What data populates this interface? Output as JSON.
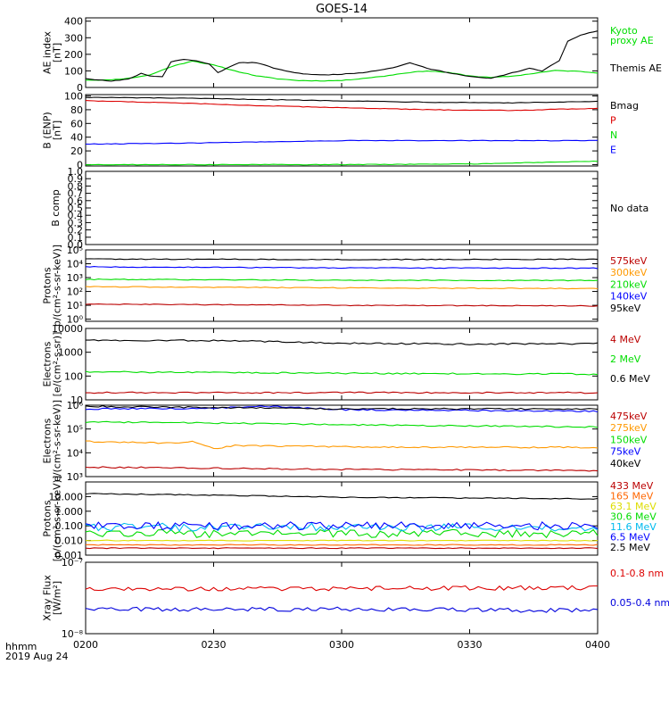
{
  "title": "GOES-14",
  "time_axis": {
    "ticks": [
      "0200",
      "0230",
      "0300",
      "0330",
      "0400"
    ],
    "tick_minutes": [
      120,
      150,
      180,
      210,
      240
    ],
    "xlim_minutes": [
      120,
      240
    ],
    "label_time": "hhmm",
    "label_date": "2019 Aug 24"
  },
  "chart_data": [
    {
      "type": "line",
      "ylabel": [
        "AE index",
        "[nT]"
      ],
      "yscale": "linear",
      "ylim": [
        0,
        420
      ],
      "yticks": [
        0,
        100,
        200,
        300,
        400
      ],
      "yticklabels": [
        "0",
        "100",
        "200",
        "300",
        "400"
      ],
      "series": [
        {
          "name": "Kyoto proxy AE",
          "color": "#00dd00",
          "x": [
            120,
            125,
            130,
            135,
            140,
            145,
            150,
            155,
            160,
            165,
            170,
            175,
            180,
            185,
            190,
            195,
            200,
            205,
            210,
            215,
            220,
            225,
            230,
            235,
            240
          ],
          "values": [
            45,
            45,
            55,
            75,
            125,
            160,
            135,
            100,
            70,
            52,
            42,
            40,
            42,
            55,
            68,
            88,
            100,
            90,
            70,
            60,
            68,
            85,
            102,
            98,
            88
          ]
        },
        {
          "name": "Themis AE",
          "color": "#000000",
          "x": [
            120,
            123,
            126,
            130,
            133,
            135,
            138,
            140,
            143,
            146,
            149,
            151,
            153,
            156,
            160,
            165,
            170,
            175,
            180,
            185,
            190,
            193,
            196,
            200,
            203,
            206,
            209,
            212,
            215,
            218,
            221,
            224,
            227,
            229,
            231,
            233,
            236,
            238,
            240
          ],
          "values": [
            55,
            45,
            38,
            50,
            85,
            70,
            65,
            155,
            170,
            160,
            140,
            90,
            115,
            150,
            150,
            110,
            85,
            75,
            80,
            90,
            110,
            125,
            150,
            115,
            100,
            85,
            70,
            60,
            55,
            75,
            95,
            115,
            100,
            130,
            160,
            280,
            315,
            330,
            340
          ]
        }
      ]
    },
    {
      "type": "line",
      "ylabel": [
        "B (ENP)",
        "[nT]"
      ],
      "yscale": "linear",
      "ylim": [
        -2,
        102
      ],
      "yticks": [
        0,
        20,
        40,
        60,
        80,
        100
      ],
      "yticklabels": [
        "0",
        "20",
        "40",
        "60",
        "80",
        "100"
      ],
      "series": [
        {
          "name": "Bmag",
          "color": "#000000",
          "x": [
            120,
            140,
            160,
            180,
            200,
            220,
            240
          ],
          "values": [
            98,
            97,
            95,
            93,
            91,
            90,
            92
          ]
        },
        {
          "name": "P",
          "color": "#dd0000",
          "x": [
            120,
            140,
            160,
            180,
            200,
            220,
            240
          ],
          "values": [
            93,
            90,
            86,
            83,
            80,
            79,
            82
          ]
        },
        {
          "name": "N",
          "color": "#00dd00",
          "x": [
            120,
            150,
            180,
            210,
            225,
            240
          ],
          "values": [
            0,
            0,
            0,
            1,
            3,
            5
          ]
        },
        {
          "name": "E",
          "color": "#0000ff",
          "x": [
            120,
            140,
            160,
            180,
            200,
            220,
            240
          ],
          "values": [
            30,
            31,
            33,
            35,
            35,
            35,
            35
          ]
        }
      ]
    },
    {
      "type": "line",
      "ylabel": [
        "B comp"
      ],
      "yscale": "linear",
      "ylim": [
        0,
        1
      ],
      "yticks": [
        0,
        0.1,
        0.2,
        0.3,
        0.4,
        0.5,
        0.6,
        0.7,
        0.8,
        0.9,
        1.0
      ],
      "yticklabels": [
        "0.0",
        "0.1",
        "0.2",
        "0.3",
        "0.4",
        "0.5",
        "0.6",
        "0.7",
        "0.8",
        "0.9",
        "1.0"
      ],
      "note": "No data",
      "series": []
    },
    {
      "type": "line",
      "ylabel": [
        "Protons",
        "p/(cm²-s-sr-keV)]"
      ],
      "yscale": "log",
      "ylim": [
        0.7,
        100000
      ],
      "yticks": [
        1,
        10,
        100,
        1000,
        10000,
        100000
      ],
      "yticklabels": [
        "10⁰",
        "10¹",
        "10²",
        "10³",
        "10⁴",
        "10⁵"
      ],
      "series": [
        {
          "name": "575keV",
          "color": "#bb0000",
          "x": [
            120,
            180,
            240
          ],
          "values": [
            12,
            10,
            9
          ]
        },
        {
          "name": "300keV",
          "color": "#ff9900",
          "x": [
            120,
            180,
            240
          ],
          "values": [
            220,
            180,
            160
          ]
        },
        {
          "name": "210keV",
          "color": "#00dd00",
          "x": [
            120,
            180,
            240
          ],
          "values": [
            750,
            650,
            620
          ]
        },
        {
          "name": "140keV",
          "color": "#0000ff",
          "x": [
            120,
            180,
            240
          ],
          "values": [
            6000,
            5000,
            4800
          ]
        },
        {
          "name": "95keV",
          "color": "#000000",
          "x": [
            120,
            180,
            240
          ],
          "values": [
            22000,
            20000,
            21000
          ]
        }
      ]
    },
    {
      "type": "line",
      "ylabel": [
        "Electrons",
        "[e/(cm²-s-sr)]"
      ],
      "yscale": "log",
      "ylim": [
        10,
        10000
      ],
      "yticks": [
        10,
        100,
        1000,
        10000
      ],
      "yticklabels": [
        "10",
        "100",
        "1000",
        "10000"
      ],
      "series": [
        {
          "name": "4 MeV",
          "color": "#bb0000",
          "x": [
            120,
            180,
            240
          ],
          "values": [
            20,
            20,
            20
          ]
        },
        {
          "name": "2 MeV",
          "color": "#00dd00",
          "x": [
            120,
            180,
            240
          ],
          "values": [
            150,
            130,
            120
          ]
        },
        {
          "name": "0.6 MeV",
          "color": "#000000",
          "x": [
            120,
            150,
            180,
            210,
            240
          ],
          "values": [
            3200,
            3100,
            2400,
            2200,
            2300
          ]
        }
      ]
    },
    {
      "type": "line",
      "ylabel": [
        "Electrons",
        "e/(cm²-s-sr-keV)]"
      ],
      "yscale": "log",
      "ylim": [
        1000,
        1000000
      ],
      "yticks": [
        1000,
        10000,
        100000,
        1000000
      ],
      "yticklabels": [
        "10³",
        "10⁴",
        "10⁵",
        "10⁶"
      ],
      "series": [
        {
          "name": "475keV",
          "color": "#bb0000",
          "x": [
            120,
            180,
            240
          ],
          "values": [
            2500,
            2000,
            1800
          ]
        },
        {
          "name": "275keV",
          "color": "#ff9900",
          "x": [
            120,
            140,
            145,
            150,
            155,
            160,
            180,
            200,
            240
          ],
          "values": [
            30000,
            25000,
            30000,
            15000,
            20000,
            20000,
            18000,
            17000,
            17000
          ]
        },
        {
          "name": "150keV",
          "color": "#00dd00",
          "x": [
            120,
            150,
            180,
            240
          ],
          "values": [
            200000,
            180000,
            150000,
            120000
          ]
        },
        {
          "name": "75keV",
          "color": "#0000ff",
          "x": [
            120,
            150,
            163,
            180,
            240
          ],
          "values": [
            700000,
            750000,
            900000,
            650000,
            550000
          ]
        },
        {
          "name": "40keV",
          "color": "#000000",
          "x": [
            120,
            150,
            180,
            240
          ],
          "values": [
            900000,
            800000,
            700000,
            700000
          ]
        }
      ]
    },
    {
      "type": "line",
      "ylabel": [
        "Protons",
        "[p/(cm²-s-sr-keV)]"
      ],
      "yscale": "log",
      "ylim": [
        0.001,
        100
      ],
      "yticks": [
        0.001,
        0.01,
        0.1,
        1,
        10
      ],
      "yticklabels": [
        "0.001",
        "0.010",
        "0.100",
        "1.000",
        "10.000"
      ],
      "series": [
        {
          "name": "433 MeV",
          "color": "#bb0000",
          "x": [
            120,
            240
          ],
          "values": [
            0.003,
            0.003
          ]
        },
        {
          "name": "165 MeV",
          "color": "#ff6600",
          "x": [
            120,
            240
          ],
          "values": [
            0.005,
            0.005
          ]
        },
        {
          "name": "63.1 MeV",
          "color": "#dddd00",
          "x": [
            120,
            240
          ],
          "values": [
            0.01,
            0.01
          ]
        },
        {
          "name": "30.6 MeV",
          "color": "#00dd00",
          "x": [
            120,
            240
          ],
          "values": [
            0.03,
            0.03
          ]
        },
        {
          "name": "11.6 MeV",
          "color": "#00bbee",
          "x": [
            120,
            240
          ],
          "values": [
            0.08,
            0.08
          ]
        },
        {
          "name": "6.5 MeV",
          "color": "#0000ff",
          "x": [
            120,
            240
          ],
          "values": [
            0.1,
            0.1
          ]
        },
        {
          "name": "2.5 MeV",
          "color": "#000000",
          "x": [
            120,
            180,
            240
          ],
          "values": [
            16,
            9,
            7
          ]
        }
      ]
    },
    {
      "type": "line",
      "ylabel": [
        "Xray Flux",
        "[W/m²]"
      ],
      "yscale": "log",
      "ylim": [
        1e-08,
        1e-07
      ],
      "yticks": [
        1e-08,
        1e-07
      ],
      "yticklabels": [
        "10⁻⁸",
        "10⁻⁷"
      ],
      "series": [
        {
          "name": "0.1-0.8 nm",
          "color": "#dd0000",
          "x": [
            120,
            180,
            240
          ],
          "values": [
            4.2e-08,
            4.3e-08,
            4.4e-08
          ]
        },
        {
          "name": "0.05-0.4 nm",
          "color": "#0000dd",
          "x": [
            120,
            180,
            240
          ],
          "values": [
            2.2e-08,
            2.2e-08,
            2.1e-08
          ]
        }
      ]
    }
  ],
  "right_labels": [
    [
      {
        "text": "Kyoto",
        "color": "#00dd00"
      },
      {
        "text": "proxy AE",
        "color": "#00dd00"
      },
      {
        "text": "Themis AE",
        "color": "#000000"
      }
    ],
    [
      {
        "text": "Bmag",
        "color": "#000000"
      },
      {
        "text": "P",
        "color": "#dd0000"
      },
      {
        "text": "N",
        "color": "#00dd00"
      },
      {
        "text": "E",
        "color": "#0000ff"
      }
    ],
    [
      {
        "text": "No data",
        "color": "#000000"
      }
    ],
    [
      {
        "text": "575keV",
        "color": "#bb0000"
      },
      {
        "text": "300keV",
        "color": "#ff9900"
      },
      {
        "text": "210keV",
        "color": "#00dd00"
      },
      {
        "text": "140keV",
        "color": "#0000ff"
      },
      {
        "text": "95keV",
        "color": "#000000"
      }
    ],
    [
      {
        "text": "4 MeV",
        "color": "#bb0000"
      },
      {
        "text": "2 MeV",
        "color": "#00dd00"
      },
      {
        "text": "0.6 MeV",
        "color": "#000000"
      }
    ],
    [
      {
        "text": "475keV",
        "color": "#bb0000"
      },
      {
        "text": "275keV",
        "color": "#ff9900"
      },
      {
        "text": "150keV",
        "color": "#00dd00"
      },
      {
        "text": "75keV",
        "color": "#0000ff"
      },
      {
        "text": "40keV",
        "color": "#000000"
      }
    ],
    [
      {
        "text": "433 MeV",
        "color": "#bb0000"
      },
      {
        "text": "165 MeV",
        "color": "#ff6600"
      },
      {
        "text": "63.1 MeV",
        "color": "#dddd00"
      },
      {
        "text": "30.6 MeV",
        "color": "#00dd00"
      },
      {
        "text": "11.6 MeV",
        "color": "#00bbee"
      },
      {
        "text": "6.5 MeV",
        "color": "#0000ff"
      },
      {
        "text": "2.5 MeV",
        "color": "#000000"
      }
    ],
    [
      {
        "text": "0.1-0.8 nm",
        "color": "#dd0000"
      },
      {
        "text": "0.05-0.4 nm",
        "color": "#0000dd"
      }
    ]
  ]
}
